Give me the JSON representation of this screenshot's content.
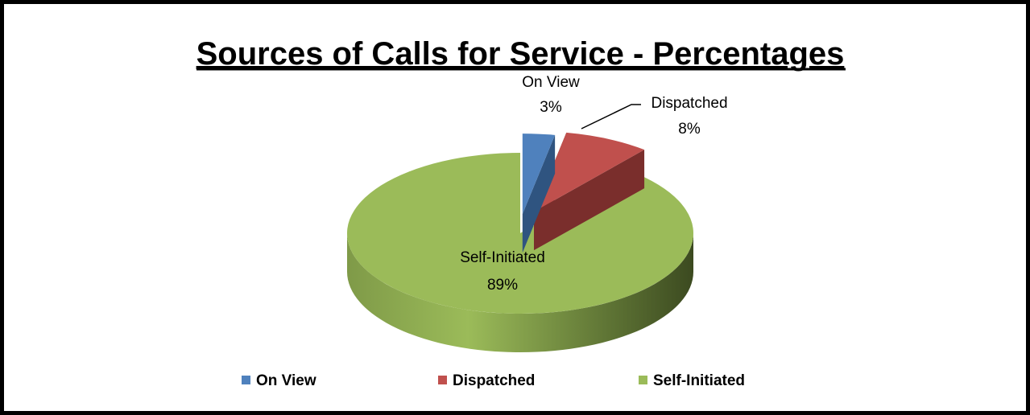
{
  "chart_data": {
    "type": "pie",
    "title": "Sources of Calls for Service - Percentages",
    "categories": [
      "On View",
      "Dispatched",
      "Self-Initiated"
    ],
    "values": [
      3,
      8,
      89
    ],
    "labels": [
      {
        "name": "On View",
        "pct": "3%"
      },
      {
        "name": "Dispatched",
        "pct": "8%"
      },
      {
        "name": "Self-Initiated",
        "pct": "89%"
      }
    ],
    "colors": [
      "#4f81bd",
      "#c0504d",
      "#9bbb59"
    ],
    "style": "3d-exploded",
    "legend_position": "bottom"
  }
}
